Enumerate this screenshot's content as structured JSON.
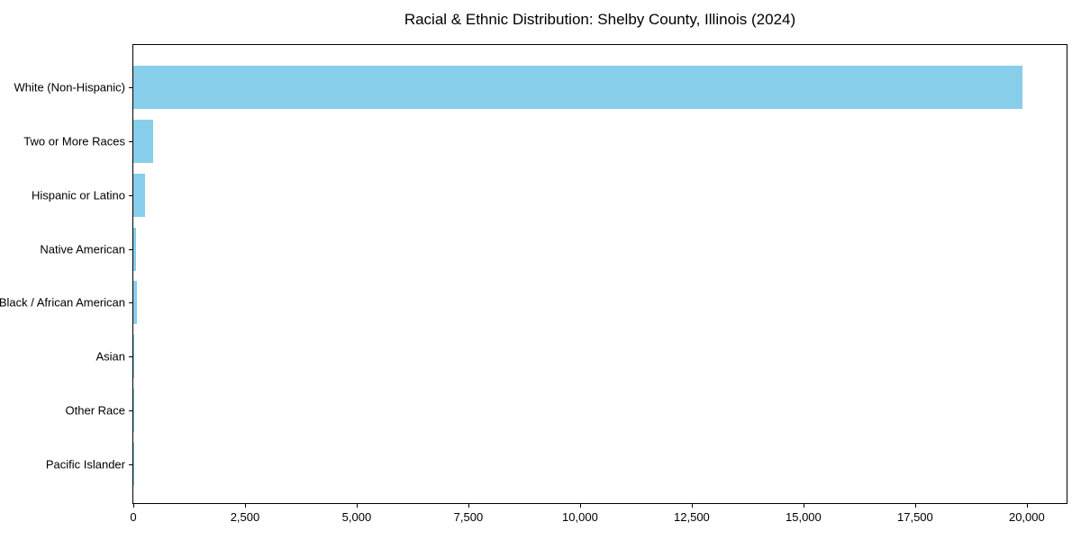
{
  "chart_data": {
    "type": "bar",
    "orientation": "horizontal",
    "title": "Racial & Ethnic Distribution: Shelby County, Illinois (2024)",
    "categories": [
      "White (Non-Hispanic)",
      "Two or More Races",
      "Hispanic or Latino",
      "Native American",
      "Black / African American",
      "Asian",
      "Other Race",
      "Pacific Islander"
    ],
    "values": [
      19900,
      440,
      260,
      70,
      75,
      20,
      15,
      4
    ],
    "xlabel": "",
    "ylabel": "",
    "xlim": [
      0,
      20890
    ],
    "xticks": [
      0,
      2500,
      5000,
      7500,
      10000,
      12500,
      15000,
      17500,
      20000
    ],
    "xtick_labels": [
      "0",
      "2,500",
      "5,000",
      "7,500",
      "10,000",
      "12,500",
      "15,000",
      "17,500",
      "20,000"
    ],
    "bar_color": "#87CEEB",
    "grid": false,
    "legend_position": "none",
    "background_color": "#ffffff",
    "spine_color": "#000000"
  }
}
